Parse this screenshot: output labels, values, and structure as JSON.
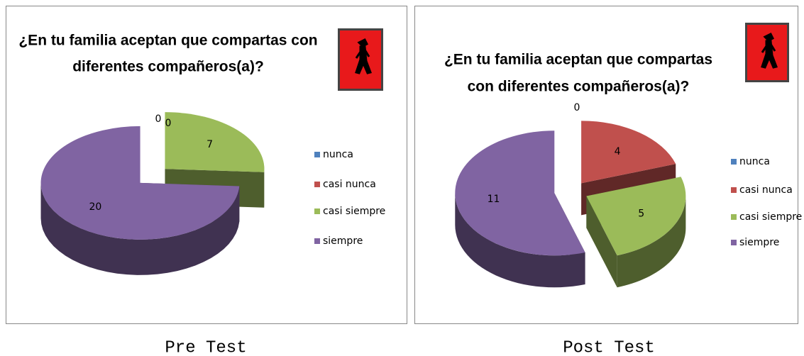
{
  "chart_data": [
    {
      "type": "pie3d",
      "title": [
        "¿En tu familia aceptan que compartas con",
        "diferentes compañeros(a)?"
      ],
      "categories": [
        "nunca",
        "casi nunca",
        "casi siempre",
        "siempre"
      ],
      "values": [
        0,
        0,
        7,
        20
      ],
      "colors": [
        "#4f81bd",
        "#c0504d",
        "#9bbb59",
        "#8064a2"
      ],
      "legend": "right",
      "caption": "Pre Test"
    },
    {
      "type": "pie3d",
      "title": [
        "¿En tu familia aceptan que compartas",
        "con diferentes compañeros(a)?"
      ],
      "categories": [
        "nunca",
        "casi nunca",
        "casi siempre",
        "siempre"
      ],
      "values": [
        0,
        4,
        5,
        11
      ],
      "colors": [
        "#4f81bd",
        "#c0504d",
        "#9bbb59",
        "#8064a2"
      ],
      "legend": "right",
      "caption": "Post Test"
    }
  ]
}
